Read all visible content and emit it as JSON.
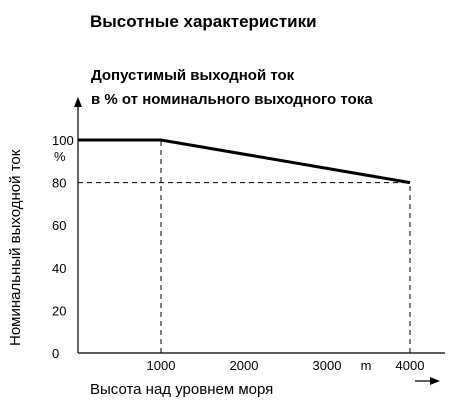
{
  "heading": "Высотные характеристики",
  "chart_data": {
    "type": "line",
    "title_line1": "Допустимый выходной ток",
    "title_line2": "в % от номинального выходного тока",
    "ylabel": "Номинальный выходной ток",
    "xlabel": "Высота над уровнем моря",
    "x_unit": "m",
    "y_unit": "%",
    "xlim": [
      0,
      4000
    ],
    "ylim": [
      0,
      100
    ],
    "x_ticks": [
      "1000",
      "2000",
      "3000",
      "4000"
    ],
    "x_tick_values": [
      1000,
      2000,
      3000,
      4000
    ],
    "y_ticks": [
      "0",
      "20",
      "40",
      "60",
      "80",
      "100"
    ],
    "y_tick_values": [
      0,
      20,
      40,
      60,
      80,
      100
    ],
    "series": [
      {
        "x": [
          0,
          1000,
          4000
        ],
        "y": [
          100,
          100,
          80
        ]
      }
    ],
    "reference_lines": [
      {
        "x": [
          1000,
          1000
        ],
        "y": [
          0,
          100
        ]
      },
      {
        "x": [
          0,
          4000
        ],
        "y": [
          80,
          80
        ]
      },
      {
        "x": [
          4000,
          4000
        ],
        "y": [
          0,
          80
        ]
      }
    ],
    "grid": false
  }
}
